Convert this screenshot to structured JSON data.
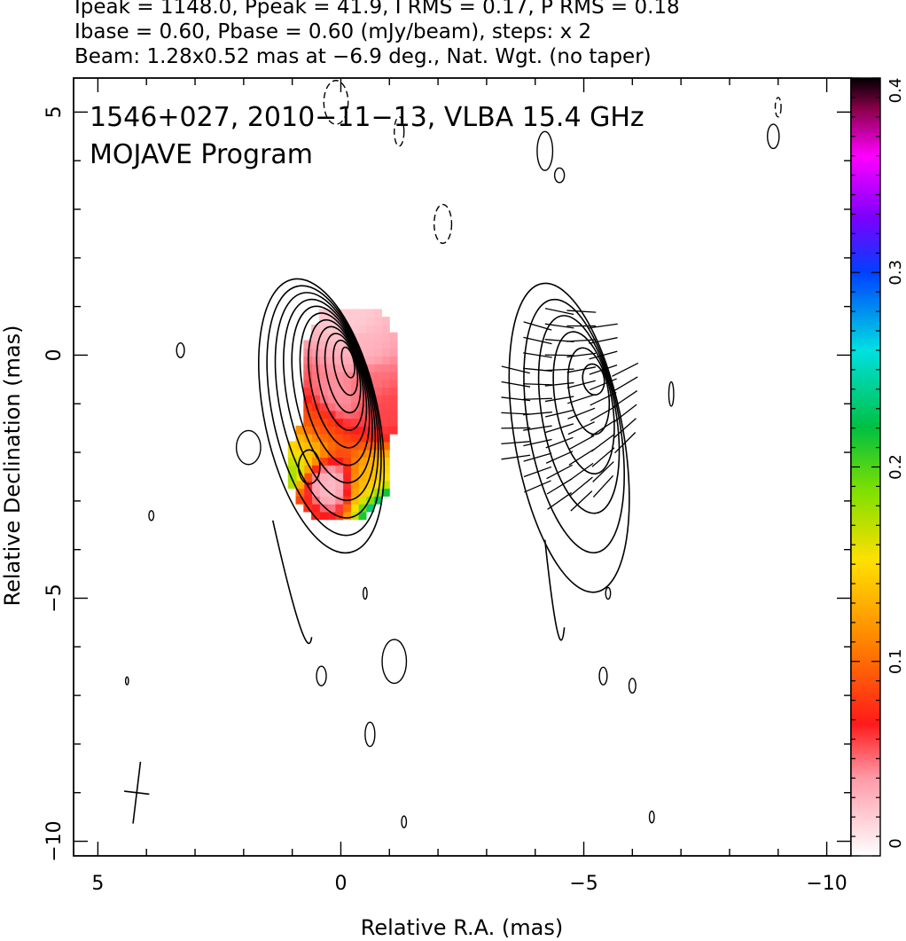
{
  "header": {
    "line1": "Ipeak = 1148.0, Ppeak = 41.9, I RMS = 0.17, P RMS = 0.18",
    "line2": "Ibase = 0.60, Pbase = 0.60 (mJy/beam), steps: x 2",
    "line3": "Beam: 1.28x0.52 mas at −6.9 deg., Nat. Wgt. (no taper)"
  },
  "chart_data": {
    "type": "heatmap",
    "title": "1546+027, 2010−11−13, VLBA 15.4 GHz",
    "subtitle": "MOJAVE Program",
    "xlabel": "Relative R.A. (mas)",
    "ylabel": "Relative Declination (mas)",
    "xlim": [
      5.5,
      -10.5
    ],
    "ylim": [
      -10.3,
      5.7
    ],
    "x_ticks": [
      5,
      0,
      -5,
      -10
    ],
    "x_tick_labels": [
      "5",
      "0",
      "−5",
      "−10"
    ],
    "y_ticks": [
      5,
      0,
      -5,
      -10
    ],
    "y_tick_labels": [
      "5",
      "0",
      "−5",
      "−10"
    ],
    "colorbar": {
      "range": [
        0,
        0.4
      ],
      "ticks": [
        0,
        0.1,
        0.2,
        0.3,
        0.4
      ],
      "tick_labels": [
        "0",
        "0.1",
        "0.2",
        "0.3",
        "0.4"
      ]
    },
    "beam": {
      "major_mas": 1.28,
      "minor_mas": 0.52,
      "pa_deg": -6.9,
      "center": [
        4.2,
        -9.0
      ]
    },
    "stokes_i_panel": {
      "peak": [
        -0.15,
        -0.15
      ],
      "knot": [
        0.65,
        -2.3
      ],
      "n_contours": 11
    },
    "polarization_panel": {
      "x_offset_mas": -5.0,
      "peak": [
        -5.2,
        -0.5
      ],
      "n_contours": 6
    },
    "fractional_polarization_pixels": [
      {
        "x": -0.1,
        "y": 0.8,
        "v": 0.02
      },
      {
        "x": -0.3,
        "y": 0.2,
        "v": 0.03
      },
      {
        "x": -0.5,
        "y": -0.5,
        "v": 0.05
      },
      {
        "x": -0.8,
        "y": -1.0,
        "v": 0.06
      },
      {
        "x": 0.2,
        "y": -0.8,
        "v": 0.04
      },
      {
        "x": 0.6,
        "y": -1.3,
        "v": 0.09
      },
      {
        "x": 0.9,
        "y": -1.8,
        "v": 0.14
      },
      {
        "x": 1.2,
        "y": -2.2,
        "v": 0.18
      },
      {
        "x": 1.5,
        "y": -2.6,
        "v": 0.24
      },
      {
        "x": 0.4,
        "y": -2.6,
        "v": 0.02
      },
      {
        "x": -0.6,
        "y": -2.6,
        "v": 0.13
      },
      {
        "x": -0.9,
        "y": -3.0,
        "v": 0.3
      },
      {
        "x": 1.0,
        "y": -3.1,
        "v": 0.08
      }
    ]
  }
}
